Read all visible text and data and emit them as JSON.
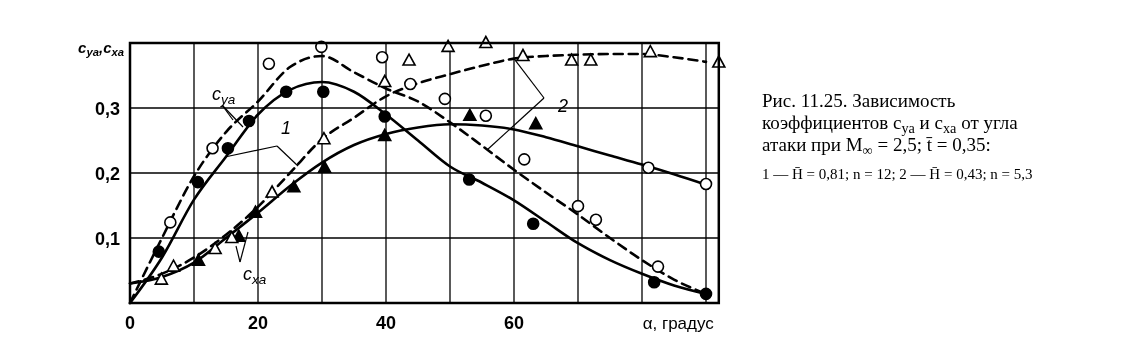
{
  "chart_data": {
    "type": "line",
    "ylabel": "c$_{ya}$,c$_{xa}$",
    "xlabel": "α, градус",
    "xlim": [
      0,
      92
    ],
    "ylim": [
      0,
      0.4
    ],
    "xticks": [
      0,
      {
        "value": 10,
        "label": null
      },
      20,
      {
        "value": 30,
        "label": null
      },
      40,
      {
        "value": 50,
        "label": null
      },
      60,
      {
        "value": 70,
        "label": null
      },
      {
        "value": 80,
        "label": null
      },
      {
        "value": 90,
        "label": null
      }
    ],
    "yticks": [
      {
        "value": 0.1,
        "label": "0,1"
      },
      {
        "value": 0.2,
        "label": "0,2"
      },
      {
        "value": 0.3,
        "label": "0,3"
      },
      {
        "value": 0.4,
        "label": null
      }
    ],
    "grid": true,
    "series": [
      {
        "color": "#000000",
        "line_style": "solid",
        "x": [
          0,
          5,
          10,
          15,
          20,
          25,
          30,
          35,
          40,
          45,
          50,
          55,
          60,
          65,
          70,
          75,
          80,
          85,
          90
        ],
        "values": [
          0,
          0.07,
          0.159,
          0.225,
          0.29,
          0.328,
          0.34,
          0.325,
          0.29,
          0.25,
          0.21,
          0.185,
          0.158,
          0.125,
          0.092,
          0.066,
          0.045,
          0.027,
          0.014
        ]
      },
      {
        "color": "#000000",
        "line_style": "dashed",
        "x": [
          0,
          5,
          10,
          15,
          20,
          25,
          30,
          35,
          40,
          45,
          50,
          55,
          60,
          65,
          70,
          75,
          80,
          85,
          90
        ],
        "values": [
          0,
          0.1,
          0.195,
          0.263,
          0.31,
          0.363,
          0.38,
          0.355,
          0.33,
          0.31,
          0.278,
          0.242,
          0.205,
          0.17,
          0.136,
          0.1,
          0.066,
          0.036,
          0.014
        ]
      },
      {
        "color": "#000000",
        "line_style": "solid",
        "x": [
          0,
          5,
          10,
          15,
          20,
          25,
          30,
          35,
          40,
          45,
          50,
          55,
          60,
          65,
          70,
          75,
          80,
          85,
          90
        ],
        "values": [
          0.03,
          0.04,
          0.062,
          0.1,
          0.139,
          0.18,
          0.216,
          0.243,
          0.26,
          0.27,
          0.275,
          0.273,
          0.267,
          0.255,
          0.241,
          0.227,
          0.213,
          0.198,
          0.182
        ]
      },
      {
        "color": "#000000",
        "line_style": "dashed",
        "x": [
          0,
          5,
          10,
          15,
          20,
          25,
          30,
          35,
          40,
          45,
          50,
          55,
          60,
          65,
          70,
          75,
          80,
          85,
          90
        ],
        "values": [
          0.03,
          0.045,
          0.07,
          0.105,
          0.148,
          0.2,
          0.252,
          0.285,
          0.318,
          0.338,
          0.352,
          0.365,
          0.376,
          0.38,
          0.382,
          0.383,
          0.383,
          0.378,
          0.371
        ]
      },
      {
        "type": "scatter",
        "color": "#000000",
        "marker": "circle",
        "x": [
          4.5,
          10.6,
          15.3,
          18.6,
          24.4,
          30.2,
          39.8,
          53,
          63,
          81.9,
          90
        ],
        "values": [
          0.079,
          0.186,
          0.238,
          0.28,
          0.325,
          0.325,
          0.287,
          0.19,
          0.122,
          0.032,
          0.014
        ]
      },
      {
        "type": "scatter",
        "color": "#ffffff",
        "marker": "circle",
        "x": [
          6.3,
          12.9,
          21.7,
          29.9,
          39.4,
          43.8,
          49.2,
          55.6,
          61.6,
          70,
          72.8,
          82.5,
          81,
          90
        ],
        "values": [
          0.124,
          0.238,
          0.368,
          0.394,
          0.378,
          0.337,
          0.314,
          0.288,
          0.221,
          0.149,
          0.128,
          0.056,
          0.208,
          0.183
        ]
      },
      {
        "type": "scatter",
        "color": "#000000",
        "marker": "triangle",
        "x": [
          10.7,
          17,
          19.6,
          25.6,
          30.4,
          39.8,
          53.1,
          63.4
        ],
        "values": [
          0.065,
          0.102,
          0.139,
          0.178,
          0.208,
          0.257,
          0.288,
          0.275
        ]
      },
      {
        "type": "scatter",
        "color": "#ffffff",
        "marker": "triangle",
        "x": [
          4.9,
          6.8,
          13.3,
          15.9,
          22.2,
          30.3,
          39.8,
          43.6,
          49.7,
          55.6,
          61.4,
          69,
          72,
          81.3,
          92
        ],
        "values": [
          0.036,
          0.056,
          0.083,
          0.1,
          0.17,
          0.252,
          0.34,
          0.373,
          0.394,
          0.4,
          0.38,
          0.373,
          0.373,
          0.386,
          0.37
        ]
      }
    ],
    "annotations": [
      "Рис. 11.25. Зависимость коэффициентов c$_{ya}$ и c$_{xa}$ от угла атаки при M$_{∞}$ = 2,5; t̄ = 0,35:",
      "1 — H̄ = 0,81;   n = 12;   2 — H̄ = 0,43;  n = 5,3",
      "c$_{ya}$",
      "c$_{xa}$",
      {
        "text": "1",
        "x": 15,
        "y": 0.225
      },
      {
        "text": "2",
        "x": 60,
        "y": 0.376
      }
    ]
  }
}
